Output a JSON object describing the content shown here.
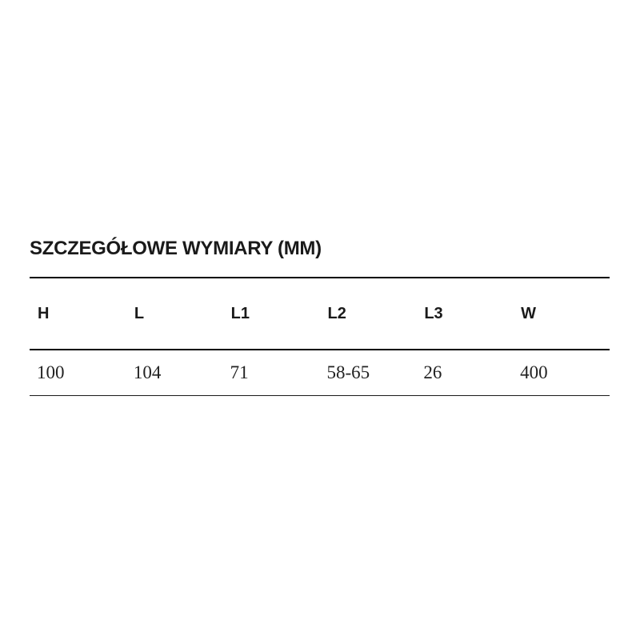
{
  "section": {
    "title": "SZCZEGÓŁOWE WYMIARY (MM)"
  },
  "table": {
    "columns": [
      "H",
      "L",
      "L1",
      "L2",
      "L3",
      "W"
    ],
    "rows": [
      [
        "100",
        "104",
        "71",
        "58-65",
        "26",
        "400"
      ]
    ]
  },
  "chart_data": {
    "type": "table",
    "title": "SZCZEGÓŁOWE WYMIARY (MM)",
    "columns": [
      "H",
      "L",
      "L1",
      "L2",
      "L3",
      "W"
    ],
    "rows": [
      [
        "100",
        "104",
        "71",
        "58-65",
        "26",
        "400"
      ]
    ]
  },
  "colors": {
    "background": "#ffffff",
    "text": "#1a1a1a",
    "border": "#010101"
  }
}
